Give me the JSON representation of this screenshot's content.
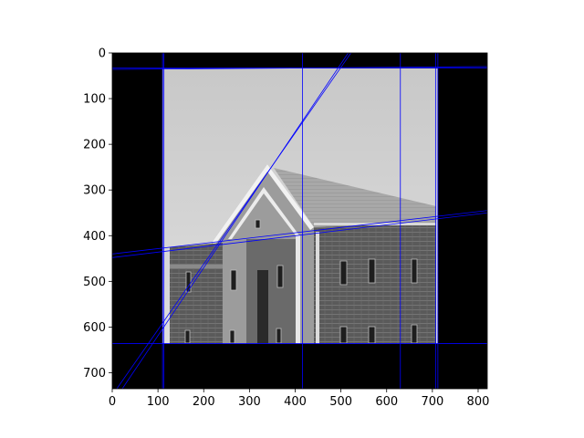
{
  "chart_data": {
    "type": "image",
    "title": "",
    "xlabel": "",
    "ylabel": "",
    "xlim": [
      0,
      820
    ],
    "ylim": [
      735,
      0
    ],
    "x_ticks": [
      "0",
      "100",
      "200",
      "300",
      "400",
      "500",
      "600",
      "700",
      "800"
    ],
    "y_ticks": [
      "0",
      "100",
      "200",
      "300",
      "400",
      "500",
      "600",
      "700"
    ],
    "grid": false,
    "image": {
      "content": "grayscale photograph of a brick building with a pitched roof, on a black border",
      "extent_x": [
        110,
        712
      ],
      "extent_y": [
        34,
        636
      ]
    },
    "line_color": "#0000ff",
    "lines": [
      {
        "x": [
          0,
          820
        ],
        "y": [
          33,
          33
        ]
      },
      {
        "x": [
          0,
          820
        ],
        "y": [
          36,
          30
        ]
      },
      {
        "x": [
          0,
          820
        ],
        "y": [
          636,
          636
        ]
      },
      {
        "x": [
          110,
          110
        ],
        "y": [
          0,
          735
        ]
      },
      {
        "x": [
          113,
          113
        ],
        "y": [
          0,
          735
        ]
      },
      {
        "x": [
          416,
          416
        ],
        "y": [
          0,
          735
        ]
      },
      {
        "x": [
          630,
          630
        ],
        "y": [
          0,
          735
        ]
      },
      {
        "x": [
          707,
          707
        ],
        "y": [
          0,
          735
        ]
      },
      {
        "x": [
          712,
          712
        ],
        "y": [
          0,
          735
        ]
      },
      {
        "x": [
          0,
          820
        ],
        "y": [
          440,
          345
        ]
      },
      {
        "x": [
          0,
          820
        ],
        "y": [
          448,
          350
        ]
      },
      {
        "x": [
          10,
          522
        ],
        "y": [
          735,
          0
        ]
      },
      {
        "x": [
          22,
          516
        ],
        "y": [
          735,
          0
        ]
      }
    ]
  }
}
